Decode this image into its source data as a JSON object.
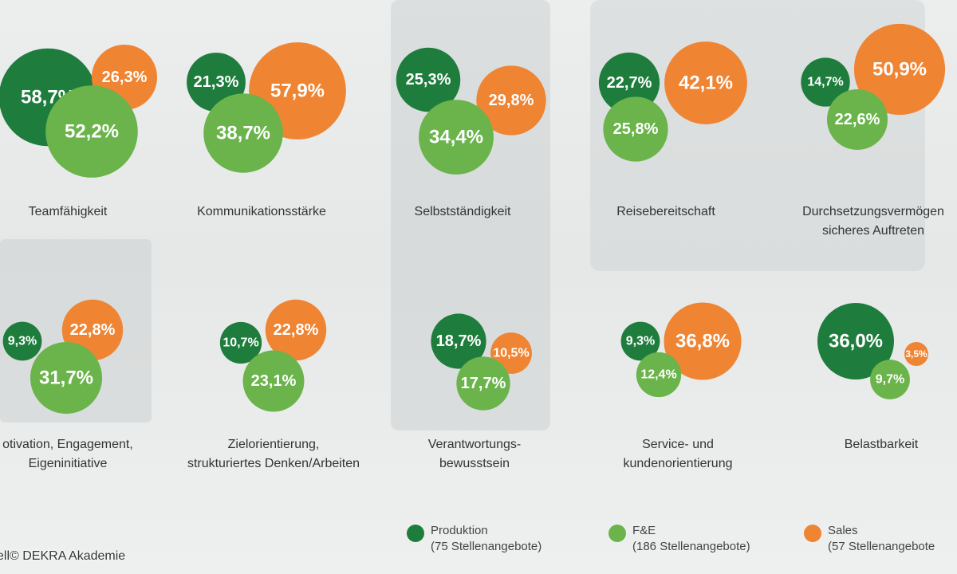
{
  "colors": {
    "produktion": "#1e7d3c",
    "fe": "#6ab44b",
    "sales": "#ef8433"
  },
  "chart_data": {
    "type": "bubble",
    "series": [
      {
        "name": "Produktion",
        "note": "(75 Stellenangebote)",
        "color": "#1e7d3c"
      },
      {
        "name": "F&E",
        "note": "(186 Stellenangebote)",
        "color": "#6ab44b"
      },
      {
        "name": "Sales",
        "note": "(57 Stellenangebote)",
        "color": "#ef8433"
      }
    ],
    "categories": [
      {
        "label": [
          "Teamfähigkeit"
        ],
        "values": [
          58.7,
          52.2,
          26.3
        ],
        "texts": [
          "58,7%",
          "52,2%",
          "26,3%"
        ]
      },
      {
        "label": [
          "Kommunikationsstärke"
        ],
        "values": [
          21.3,
          38.7,
          57.9
        ],
        "texts": [
          "21,3%",
          "38,7%",
          "57,9%"
        ]
      },
      {
        "label": [
          "Selbstständigkeit"
        ],
        "values": [
          25.3,
          34.4,
          29.8
        ],
        "texts": [
          "25,3%",
          "34,4%",
          "29,8%"
        ]
      },
      {
        "label": [
          "Reisebereitschaft"
        ],
        "values": [
          22.7,
          25.8,
          42.1
        ],
        "texts": [
          "22,7%",
          "25,8%",
          "42,1%"
        ]
      },
      {
        "label": [
          "Durchsetzungsvermögen",
          "sicheres Auftreten"
        ],
        "values": [
          14.7,
          22.6,
          50.9
        ],
        "texts": [
          "14,7%",
          "22,6%",
          "50,9%"
        ]
      },
      {
        "label": [
          "otivation, Engagement,",
          "Eigeninitiative"
        ],
        "values": [
          9.3,
          31.7,
          22.8
        ],
        "texts": [
          "9,3%",
          "31,7%",
          "22,8%"
        ]
      },
      {
        "label": [
          "Zielorientierung,",
          "strukturiertes Denken/Arbeiten"
        ],
        "values": [
          10.7,
          23.1,
          22.8
        ],
        "texts": [
          "10,7%",
          "23,1%",
          "22,8%"
        ]
      },
      {
        "label": [
          "Verantwortungs-",
          "bewusstsein"
        ],
        "values": [
          18.7,
          17.7,
          10.5
        ],
        "texts": [
          "18,7%",
          "17,7%",
          "10,5%"
        ]
      },
      {
        "label": [
          "Service- und",
          "kundenorientierung"
        ],
        "values": [
          9.3,
          12.4,
          36.8
        ],
        "texts": [
          "9,3%",
          "12,4%",
          "36,8%"
        ]
      },
      {
        "label": [
          "Belastbarkeit"
        ],
        "values": [
          36.0,
          9.7,
          3.5
        ],
        "texts": [
          "36,0%",
          "9,7%",
          "3,5%"
        ]
      }
    ]
  },
  "legend": [
    {
      "name": "Produktion",
      "note": "(75 Stellenangebote)"
    },
    {
      "name": "F&E",
      "note": "(186 Stellenangebote)"
    },
    {
      "name": "Sales",
      "note": "(57 Stellenangebote"
    }
  ],
  "source": "ell© DEKRA Akademie"
}
